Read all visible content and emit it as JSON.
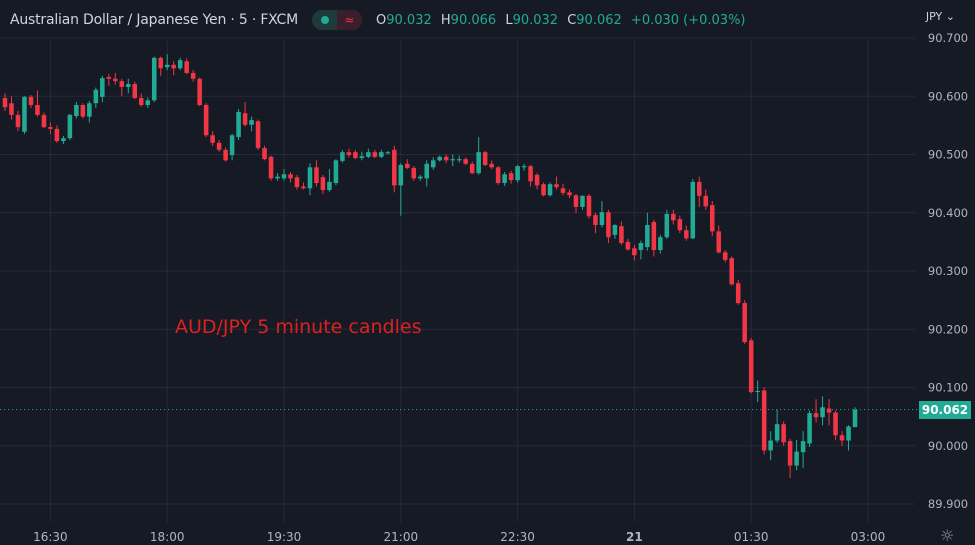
{
  "header": {
    "title": "Australian Dollar / Japanese Yen · 5 · FXCM",
    "status_icon": "market-open-dot-icon",
    "wave_icon": "≈",
    "ohlc": {
      "o_label": "O",
      "o": "90.032",
      "h_label": "H",
      "h": "90.066",
      "l_label": "L",
      "l": "90.032",
      "c_label": "C",
      "c": "90.062",
      "change": "+0.030 (+0.03%)"
    },
    "currency": "JPY ⌄"
  },
  "colors": {
    "background": "#161a25",
    "up": "#22ab94",
    "down": "#f23645",
    "grid": "#262b38",
    "annotation": "#e02020"
  },
  "annotation": "AUD/JPY 5 minute candles",
  "last_price": "90.062",
  "settings_icon": "☼",
  "chart_data": {
    "type": "candlestick",
    "interval_minutes": 5,
    "ylim": [
      89.9,
      90.7
    ],
    "y_ticks": [
      "90.700",
      "90.600",
      "90.500",
      "90.400",
      "90.300",
      "90.200",
      "90.100",
      "90.000",
      "89.900"
    ],
    "x_ticks": [
      "16:30",
      "18:00",
      "19:30",
      "21:00",
      "22:30",
      "21",
      "01:30",
      "03:00"
    ],
    "grid": true,
    "last_price": 90.062,
    "ohlc": [
      [
        90.597,
        90.605,
        90.575,
        90.581
      ],
      [
        90.588,
        90.6,
        90.56,
        90.568
      ],
      [
        90.568,
        90.575,
        90.54,
        90.547
      ],
      [
        90.539,
        90.6,
        90.535,
        90.599
      ],
      [
        90.599,
        90.602,
        90.58,
        90.585
      ],
      [
        90.585,
        90.61,
        90.565,
        90.568
      ],
      [
        90.568,
        90.572,
        90.545,
        90.547
      ],
      [
        90.547,
        90.555,
        90.535,
        90.544
      ],
      [
        90.544,
        90.55,
        90.52,
        90.523
      ],
      [
        90.523,
        90.532,
        90.518,
        90.528
      ],
      [
        90.528,
        90.57,
        90.525,
        90.568
      ],
      [
        90.566,
        90.59,
        90.562,
        90.585
      ],
      [
        90.585,
        90.588,
        90.562,
        90.565
      ],
      [
        90.565,
        90.592,
        90.555,
        90.588
      ],
      [
        90.588,
        90.615,
        90.58,
        90.611
      ],
      [
        90.599,
        90.635,
        90.59,
        90.631
      ],
      [
        90.633,
        90.638,
        90.618,
        90.63
      ],
      [
        90.63,
        90.64,
        90.62,
        90.626
      ],
      [
        90.626,
        90.63,
        90.6,
        90.616
      ],
      [
        90.616,
        90.63,
        90.605,
        90.621
      ],
      [
        90.621,
        90.625,
        90.595,
        90.597
      ],
      [
        90.597,
        90.605,
        90.582,
        90.585
      ],
      [
        90.585,
        90.598,
        90.58,
        90.593
      ],
      [
        90.593,
        90.668,
        90.59,
        90.666
      ],
      [
        90.666,
        90.668,
        90.635,
        90.648
      ],
      [
        90.65,
        90.672,
        90.645,
        90.654
      ],
      [
        90.654,
        90.66,
        90.636,
        90.648
      ],
      [
        90.648,
        90.666,
        90.645,
        90.662
      ],
      [
        90.66,
        90.665,
        90.638,
        90.64
      ],
      [
        90.64,
        90.645,
        90.625,
        90.63
      ],
      [
        90.63,
        90.632,
        90.583,
        90.585
      ],
      [
        90.585,
        90.588,
        90.53,
        90.533
      ],
      [
        90.533,
        90.54,
        90.515,
        90.52
      ],
      [
        90.52,
        90.525,
        90.505,
        90.508
      ],
      [
        90.508,
        90.512,
        90.488,
        90.49
      ],
      [
        90.499,
        90.535,
        90.49,
        90.533
      ],
      [
        90.53,
        90.578,
        90.525,
        90.573
      ],
      [
        90.571,
        90.59,
        90.548,
        90.551
      ],
      [
        90.551,
        90.565,
        90.54,
        90.559
      ],
      [
        90.557,
        90.56,
        90.508,
        90.511
      ],
      [
        90.511,
        90.515,
        90.49,
        90.492
      ],
      [
        90.496,
        90.498,
        90.455,
        90.459
      ],
      [
        90.459,
        90.468,
        90.455,
        90.462
      ],
      [
        90.459,
        90.475,
        90.455,
        90.466
      ],
      [
        90.466,
        90.47,
        90.452,
        90.459
      ],
      [
        90.461,
        90.465,
        90.44,
        90.444
      ],
      [
        90.445,
        90.452,
        90.44,
        90.442
      ],
      [
        90.442,
        90.485,
        90.43,
        90.478
      ],
      [
        90.478,
        90.49,
        90.445,
        90.451
      ],
      [
        90.461,
        90.465,
        90.432,
        90.439
      ],
      [
        90.439,
        90.475,
        90.436,
        90.453
      ],
      [
        90.451,
        90.492,
        90.447,
        90.49
      ],
      [
        90.489,
        90.508,
        90.486,
        90.504
      ],
      [
        90.504,
        90.51,
        90.495,
        90.499
      ],
      [
        90.504,
        90.508,
        90.492,
        90.494
      ],
      [
        90.494,
        90.505,
        90.49,
        90.497
      ],
      [
        90.496,
        90.51,
        90.494,
        90.504
      ],
      [
        90.504,
        90.508,
        90.494,
        90.496
      ],
      [
        90.496,
        90.508,
        90.494,
        90.504
      ],
      [
        90.502,
        90.506,
        90.5,
        90.504
      ],
      [
        90.508,
        90.515,
        90.435,
        90.447
      ],
      [
        90.447,
        90.485,
        90.395,
        90.482
      ],
      [
        90.484,
        90.492,
        90.475,
        90.477
      ],
      [
        90.477,
        90.48,
        90.455,
        90.459
      ],
      [
        90.459,
        90.465,
        90.455,
        90.462
      ],
      [
        90.459,
        90.49,
        90.445,
        90.484
      ],
      [
        90.478,
        90.495,
        90.474,
        90.49
      ],
      [
        90.49,
        90.498,
        90.488,
        90.496
      ],
      [
        90.496,
        90.5,
        90.485,
        90.49
      ],
      [
        90.49,
        90.5,
        90.48,
        90.492
      ],
      [
        90.49,
        90.498,
        90.486,
        90.492
      ],
      [
        90.492,
        90.495,
        90.482,
        90.484
      ],
      [
        90.484,
        90.488,
        90.466,
        90.468
      ],
      [
        90.468,
        90.53,
        90.465,
        90.504
      ],
      [
        90.504,
        90.506,
        90.48,
        90.482
      ],
      [
        90.484,
        90.49,
        90.475,
        90.478
      ],
      [
        90.478,
        90.48,
        90.448,
        90.451
      ],
      [
        90.451,
        90.47,
        90.446,
        90.466
      ],
      [
        90.468,
        90.472,
        90.45,
        90.456
      ],
      [
        90.456,
        90.482,
        90.452,
        90.48
      ],
      [
        90.478,
        90.484,
        90.472,
        90.48
      ],
      [
        90.48,
        90.482,
        90.445,
        90.454
      ],
      [
        90.465,
        90.468,
        90.44,
        90.447
      ],
      [
        90.449,
        90.452,
        90.428,
        90.43
      ],
      [
        90.43,
        90.452,
        90.428,
        90.449
      ],
      [
        90.449,
        90.462,
        90.44,
        90.444
      ],
      [
        90.442,
        90.45,
        90.43,
        90.434
      ],
      [
        90.435,
        90.44,
        90.425,
        90.43
      ],
      [
        90.43,
        90.432,
        90.4,
        90.41
      ],
      [
        90.41,
        90.43,
        90.405,
        90.429
      ],
      [
        90.429,
        90.432,
        90.39,
        90.394
      ],
      [
        90.396,
        90.4,
        90.365,
        90.379
      ],
      [
        90.379,
        90.42,
        90.375,
        90.401
      ],
      [
        90.401,
        90.405,
        90.348,
        90.358
      ],
      [
        90.362,
        90.38,
        90.355,
        90.379
      ],
      [
        90.377,
        90.385,
        90.345,
        90.348
      ],
      [
        90.35,
        90.355,
        90.335,
        90.337
      ],
      [
        90.339,
        90.345,
        90.318,
        90.327
      ],
      [
        90.336,
        90.352,
        90.32,
        90.348
      ],
      [
        90.341,
        90.4,
        90.335,
        90.379
      ],
      [
        90.384,
        90.388,
        90.325,
        90.336
      ],
      [
        90.336,
        90.362,
        90.33,
        90.358
      ],
      [
        90.358,
        90.405,
        90.355,
        90.398
      ],
      [
        90.398,
        90.405,
        90.38,
        90.387
      ],
      [
        90.389,
        90.395,
        90.365,
        90.37
      ],
      [
        90.37,
        90.378,
        90.352,
        90.356
      ],
      [
        90.356,
        90.458,
        90.355,
        90.453
      ],
      [
        90.453,
        90.462,
        90.41,
        90.429
      ],
      [
        90.429,
        90.44,
        90.405,
        90.411
      ],
      [
        90.413,
        90.42,
        90.36,
        90.368
      ],
      [
        90.368,
        90.378,
        90.33,
        90.332
      ],
      [
        90.332,
        90.336,
        90.315,
        90.319
      ],
      [
        90.322,
        90.325,
        90.275,
        90.277
      ],
      [
        90.279,
        90.285,
        90.242,
        90.245
      ],
      [
        90.245,
        90.25,
        90.175,
        90.178
      ],
      [
        90.181,
        90.185,
        90.09,
        90.092
      ],
      [
        90.094,
        90.112,
        90.075,
        90.094
      ],
      [
        90.095,
        90.1,
        89.985,
        89.992
      ],
      [
        89.992,
        90.025,
        89.975,
        90.009
      ],
      [
        90.009,
        90.062,
        90.005,
        90.037
      ],
      [
        90.037,
        90.042,
        90.0,
        90.006
      ],
      [
        90.008,
        90.012,
        89.945,
        89.966
      ],
      [
        89.966,
        90.01,
        89.958,
        89.99
      ],
      [
        89.989,
        90.025,
        89.962,
        90.008
      ],
      [
        90.004,
        90.06,
        89.998,
        90.056
      ],
      [
        90.056,
        90.08,
        90.04,
        90.049
      ],
      [
        90.049,
        90.085,
        90.035,
        90.066
      ],
      [
        90.064,
        90.08,
        90.035,
        90.057
      ],
      [
        90.057,
        90.06,
        90.01,
        90.018
      ],
      [
        90.018,
        90.025,
        90.0,
        90.009
      ],
      [
        90.009,
        90.035,
        89.992,
        90.033
      ],
      [
        90.032,
        90.066,
        90.032,
        90.062
      ]
    ]
  }
}
